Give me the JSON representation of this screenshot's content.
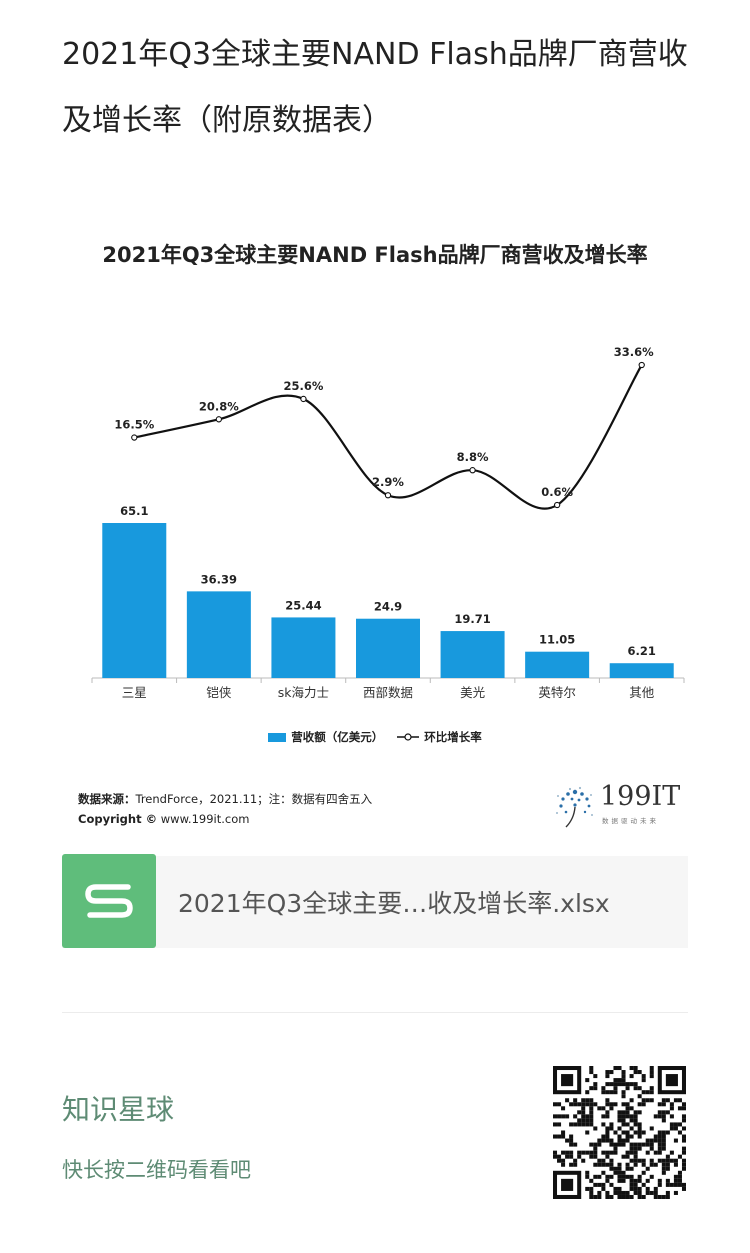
{
  "post": {
    "title": "2021年Q3全球主要NAND  Flash品牌厂商营收及增长率（附原数据表）"
  },
  "chart_data": {
    "type": "bar",
    "title": "2021年Q3全球主要NAND Flash品牌厂商营收及增长率",
    "categories": [
      "三星",
      "铠侠",
      "sk海力士",
      "西部数据",
      "美光",
      "英特尔",
      "其他"
    ],
    "series": [
      {
        "name": "营收额（亿美元）",
        "type": "bar",
        "values": [
          65.1,
          36.39,
          25.44,
          24.9,
          19.71,
          11.05,
          6.21
        ],
        "labels": [
          "65.1",
          "36.39",
          "25.44",
          "24.9",
          "19.71",
          "11.05",
          "6.21"
        ],
        "color": "#1899dd"
      },
      {
        "name": "环比增长率",
        "type": "line",
        "values": [
          16.5,
          20.8,
          25.6,
          2.9,
          8.8,
          0.6,
          33.6
        ],
        "labels": [
          "16.5%",
          "20.8%",
          "25.6%",
          "2.9%",
          "8.8%",
          "0.6%",
          "33.6%"
        ],
        "color": "#111111"
      }
    ],
    "grid": false,
    "legend": "bottom"
  },
  "chart_footer": {
    "source_label": "数据来源：",
    "source_text": "TrendForce，2021.11；注：数据有四舍五入",
    "copyright_label": "Copyright ©",
    "copyright_text": " www.199it.com",
    "brand": "199IT",
    "brand_sub": "数据驱动未来"
  },
  "file": {
    "name": "2021年Q3全球主要…收及增长率.xlsx",
    "icon": "spreadsheet-s-icon"
  },
  "footer": {
    "title": "知识星球",
    "subtitle": "快长按二维码看看吧",
    "qr": "qr-code-icon"
  }
}
